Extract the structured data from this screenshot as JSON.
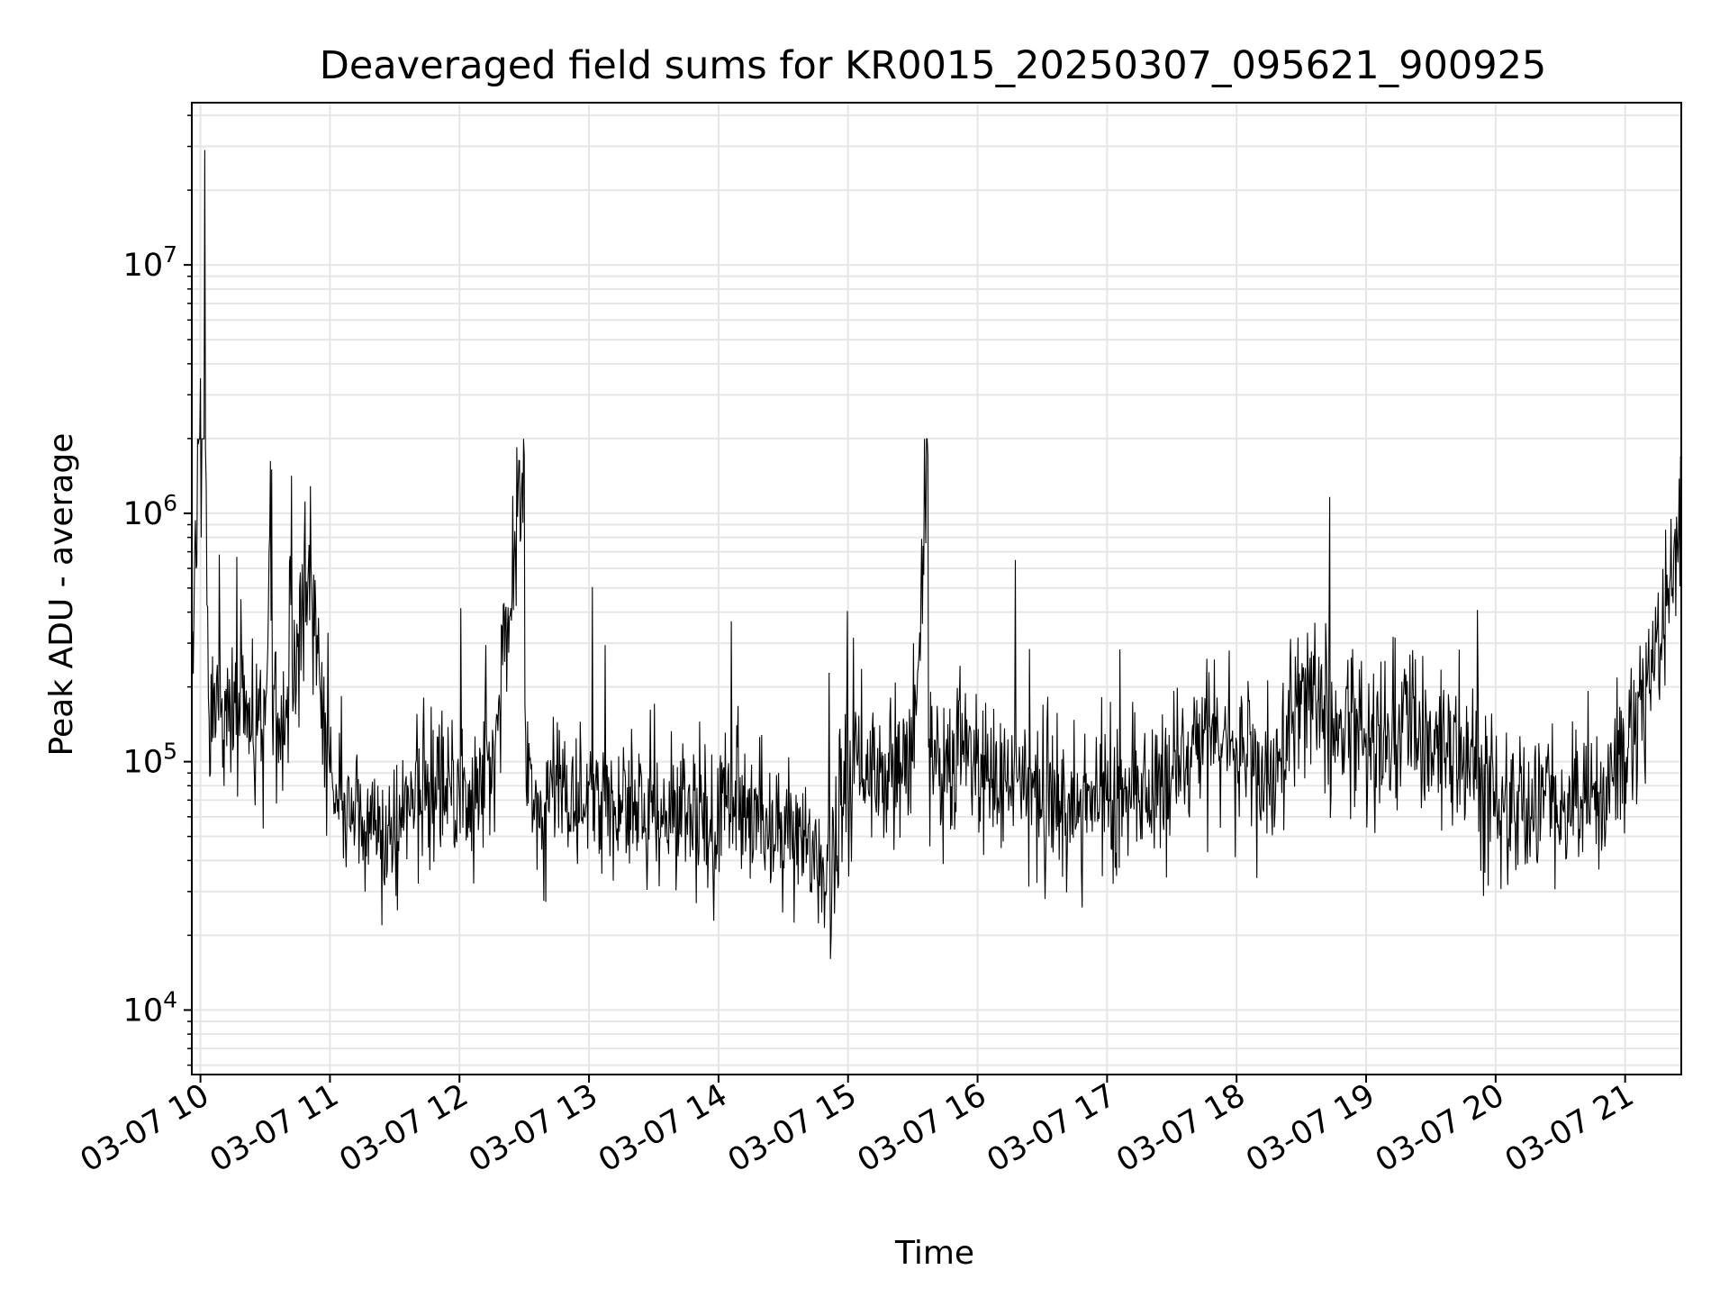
{
  "chart_data": {
    "type": "line",
    "title": "Deaveraged field sums for KR0015_20250307_095621_900925",
    "xlabel": "Time",
    "ylabel": "Peak ADU - average",
    "yscale": "log",
    "ylim": [
      5500,
      45000000
    ],
    "xlim": [
      "2025-03-07 09:56",
      "2025-03-07 21:26"
    ],
    "x_ticks": [
      "03-07 10",
      "03-07 11",
      "03-07 12",
      "03-07 13",
      "03-07 14",
      "03-07 15",
      "03-07 16",
      "03-07 17",
      "03-07 18",
      "03-07 19",
      "03-07 20",
      "03-07 21"
    ],
    "y_ticks": [
      {
        "base": "10",
        "exp": "4",
        "value": 10000
      },
      {
        "base": "10",
        "exp": "5",
        "value": 100000
      },
      {
        "base": "10",
        "exp": "6",
        "value": 1000000
      },
      {
        "base": "10",
        "exp": "7",
        "value": 10000000
      }
    ],
    "grid": true,
    "series_color": "#000000",
    "grid_color": "#e6e6e6",
    "series": [
      {
        "x": [
          "2025-03-07 09:56",
          "2025-03-07 09:58",
          "2025-03-07 10:00",
          "2025-03-07 10:02",
          "2025-03-07 10:04",
          "2025-03-07 10:10",
          "2025-03-07 10:20",
          "2025-03-07 10:30",
          "2025-03-07 10:33",
          "2025-03-07 10:40",
          "2025-03-07 10:50",
          "2025-03-07 11:00",
          "2025-03-07 11:05",
          "2025-03-07 11:15",
          "2025-03-07 11:30",
          "2025-03-07 11:45",
          "2025-03-07 12:00",
          "2025-03-07 12:15",
          "2025-03-07 12:30",
          "2025-03-07 12:35",
          "2025-03-07 12:45",
          "2025-03-07 13:00",
          "2025-03-07 13:15",
          "2025-03-07 13:30",
          "2025-03-07 13:45",
          "2025-03-07 14:00",
          "2025-03-07 14:15",
          "2025-03-07 14:30",
          "2025-03-07 14:40",
          "2025-03-07 14:50",
          "2025-03-07 15:00",
          "2025-03-07 15:15",
          "2025-03-07 15:30",
          "2025-03-07 15:37",
          "2025-03-07 15:45",
          "2025-03-07 16:00",
          "2025-03-07 16:15",
          "2025-03-07 16:30",
          "2025-03-07 16:45",
          "2025-03-07 17:00",
          "2025-03-07 17:15",
          "2025-03-07 17:30",
          "2025-03-07 17:45",
          "2025-03-07 18:00",
          "2025-03-07 18:15",
          "2025-03-07 18:30",
          "2025-03-07 18:45",
          "2025-03-07 19:00",
          "2025-03-07 19:15",
          "2025-03-07 19:30",
          "2025-03-07 19:45",
          "2025-03-07 20:00",
          "2025-03-07 20:15",
          "2025-03-07 20:30",
          "2025-03-07 20:45",
          "2025-03-07 21:00",
          "2025-03-07 21:10",
          "2025-03-07 21:20",
          "2025-03-07 21:26"
        ],
        "y": [
          300000,
          600000,
          3500000,
          29000000,
          150000,
          180000,
          130000,
          140000,
          1500000,
          150000,
          600000,
          90000,
          70000,
          60000,
          50000,
          80000,
          70000,
          80000,
          1700000,
          70000,
          80000,
          80000,
          70000,
          60000,
          60000,
          60000,
          70000,
          40000,
          50000,
          30000,
          80000,
          90000,
          100000,
          1700000,
          100000,
          110000,
          80000,
          70000,
          70000,
          70000,
          70000,
          90000,
          130000,
          120000,
          80000,
          170000,
          150000,
          130000,
          140000,
          120000,
          100000,
          70000,
          60000,
          70000,
          80000,
          100000,
          200000,
          500000,
          700000
        ]
      }
    ]
  }
}
